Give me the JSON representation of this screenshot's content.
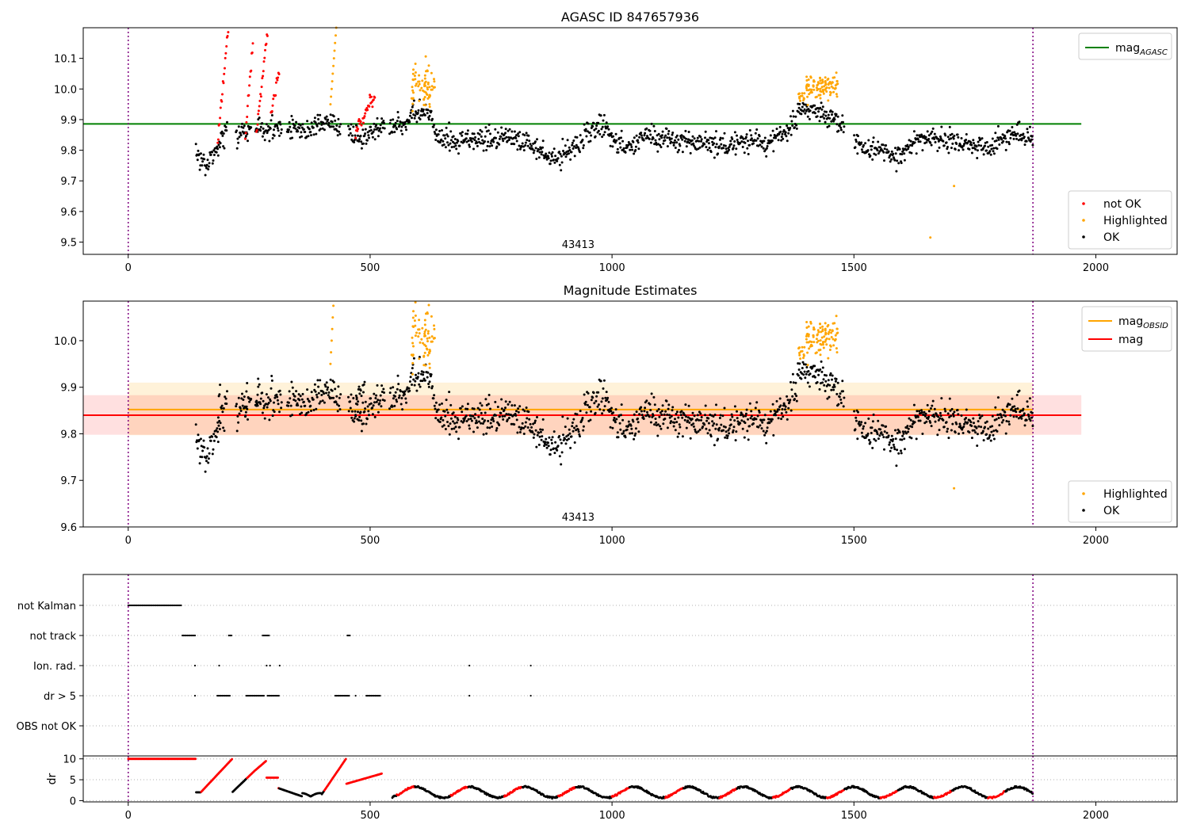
{
  "figure": {
    "legend_font": "13px"
  },
  "chart_data": [
    {
      "id": "agasc",
      "type": "scatter",
      "title": "AGASC ID 847657936",
      "xlim": [
        -93,
        2168
      ],
      "ylim": [
        9.46,
        10.2
      ],
      "xticks": [
        0,
        500,
        1000,
        1500,
        2000
      ],
      "yticks": [
        9.5,
        9.6,
        9.7,
        9.8,
        9.9,
        10.0,
        10.1
      ],
      "ytick_labels": [
        "9.5",
        "9.6",
        "9.7",
        "9.8",
        "9.9",
        "10.0",
        "10.1"
      ],
      "obsid_label": "43413",
      "obsid_label_x": 930,
      "obs_boundaries": [
        0,
        1870
      ],
      "hlines": [
        {
          "name": "mag_AGASC",
          "y": 9.886,
          "x": [
            -93,
            1970
          ],
          "color": "#008000"
        }
      ],
      "legend_lines": [
        {
          "name": "mag",
          "sub": "AGASC",
          "color": "#008000"
        }
      ],
      "legend_points": [
        {
          "name": "not OK",
          "color": "#ff0000"
        },
        {
          "name": "Highlighted",
          "color": "#ffa500"
        },
        {
          "name": "OK",
          "color": "#000000"
        }
      ],
      "series": [
        {
          "name": "OK",
          "color": "#000000"
        },
        {
          "name": "not OK",
          "color": "#ff0000"
        },
        {
          "name": "Highlighted",
          "color": "#ffa500"
        }
      ]
    },
    {
      "id": "estimates",
      "type": "scatter",
      "title": "Magnitude Estimates",
      "xlim": [
        -93,
        2168
      ],
      "ylim": [
        9.6,
        10.085
      ],
      "xticks": [
        0,
        500,
        1000,
        1500,
        2000
      ],
      "yticks": [
        9.6,
        9.7,
        9.8,
        9.9,
        10.0
      ],
      "ytick_labels": [
        "9.6",
        "9.7",
        "9.8",
        "9.9",
        "10.0"
      ],
      "obsid_label": "43413",
      "obsid_label_x": 930,
      "obs_boundaries": [
        0,
        1870
      ],
      "bands": [
        {
          "y": [
            9.797,
            9.91
          ],
          "x": [
            0,
            1870
          ],
          "color": "#ffa500",
          "opacity": 0.15
        },
        {
          "y": [
            9.798,
            9.883
          ],
          "x": [
            -93,
            1970
          ],
          "color": "#ff0000",
          "opacity": 0.12
        }
      ],
      "hlines": [
        {
          "name": "mag_OBSID",
          "y": 9.852,
          "x": [
            0,
            1870
          ],
          "color": "#ffa500"
        },
        {
          "name": "mag",
          "y": 9.84,
          "x": [
            -93,
            1970
          ],
          "color": "#ff0000"
        }
      ],
      "legend_lines": [
        {
          "name": "mag",
          "sub": "OBSID",
          "color": "#ffa500"
        },
        {
          "name": "mag",
          "sub": "",
          "color": "#ff0000"
        }
      ],
      "legend_points": [
        {
          "name": "Highlighted",
          "color": "#ffa500"
        },
        {
          "name": "OK",
          "color": "#000000"
        }
      ],
      "series": [
        {
          "name": "OK",
          "color": "#000000"
        },
        {
          "name": "Highlighted",
          "color": "#ffa500"
        }
      ]
    },
    {
      "id": "flags",
      "type": "scatter",
      "categories": [
        "not Kalman",
        "not track",
        "Ion. rad.",
        "dr > 5",
        "OBS not OK"
      ],
      "xlim": [
        -93,
        2168
      ],
      "obs_boundaries": [
        0,
        1870
      ],
      "flag_ranges": {
        "not Kalman": [
          [
            0,
            110
          ]
        ],
        "not track": [
          [
            112,
            140
          ],
          [
            208,
            214
          ],
          [
            278,
            292
          ],
          [
            453,
            460
          ]
        ],
        "Ion. rad.": [
          [
            138,
            139
          ],
          [
            188,
            189
          ],
          [
            286,
            288
          ],
          [
            293,
            294
          ],
          [
            313,
            314
          ],
          [
            705,
            706
          ],
          [
            832,
            833
          ]
        ],
        "dr > 5": [
          [
            138,
            139
          ],
          [
            184,
            210
          ],
          [
            244,
            282
          ],
          [
            288,
            312
          ],
          [
            428,
            458
          ],
          [
            470,
            471
          ],
          [
            492,
            522
          ],
          [
            705,
            706
          ],
          [
            832,
            833
          ]
        ],
        "OBS not OK": []
      }
    },
    {
      "id": "dr",
      "type": "scatter",
      "ylabel": "dr",
      "xlim": [
        -93,
        2168
      ],
      "ylim": [
        -0.3,
        10.7
      ],
      "xticks": [
        0,
        500,
        1000,
        1500,
        2000
      ],
      "yticks": [
        0,
        5,
        10
      ],
      "ytick_labels": [
        "0",
        "5",
        "10"
      ],
      "obs_boundaries": [
        0,
        1870
      ]
    }
  ]
}
